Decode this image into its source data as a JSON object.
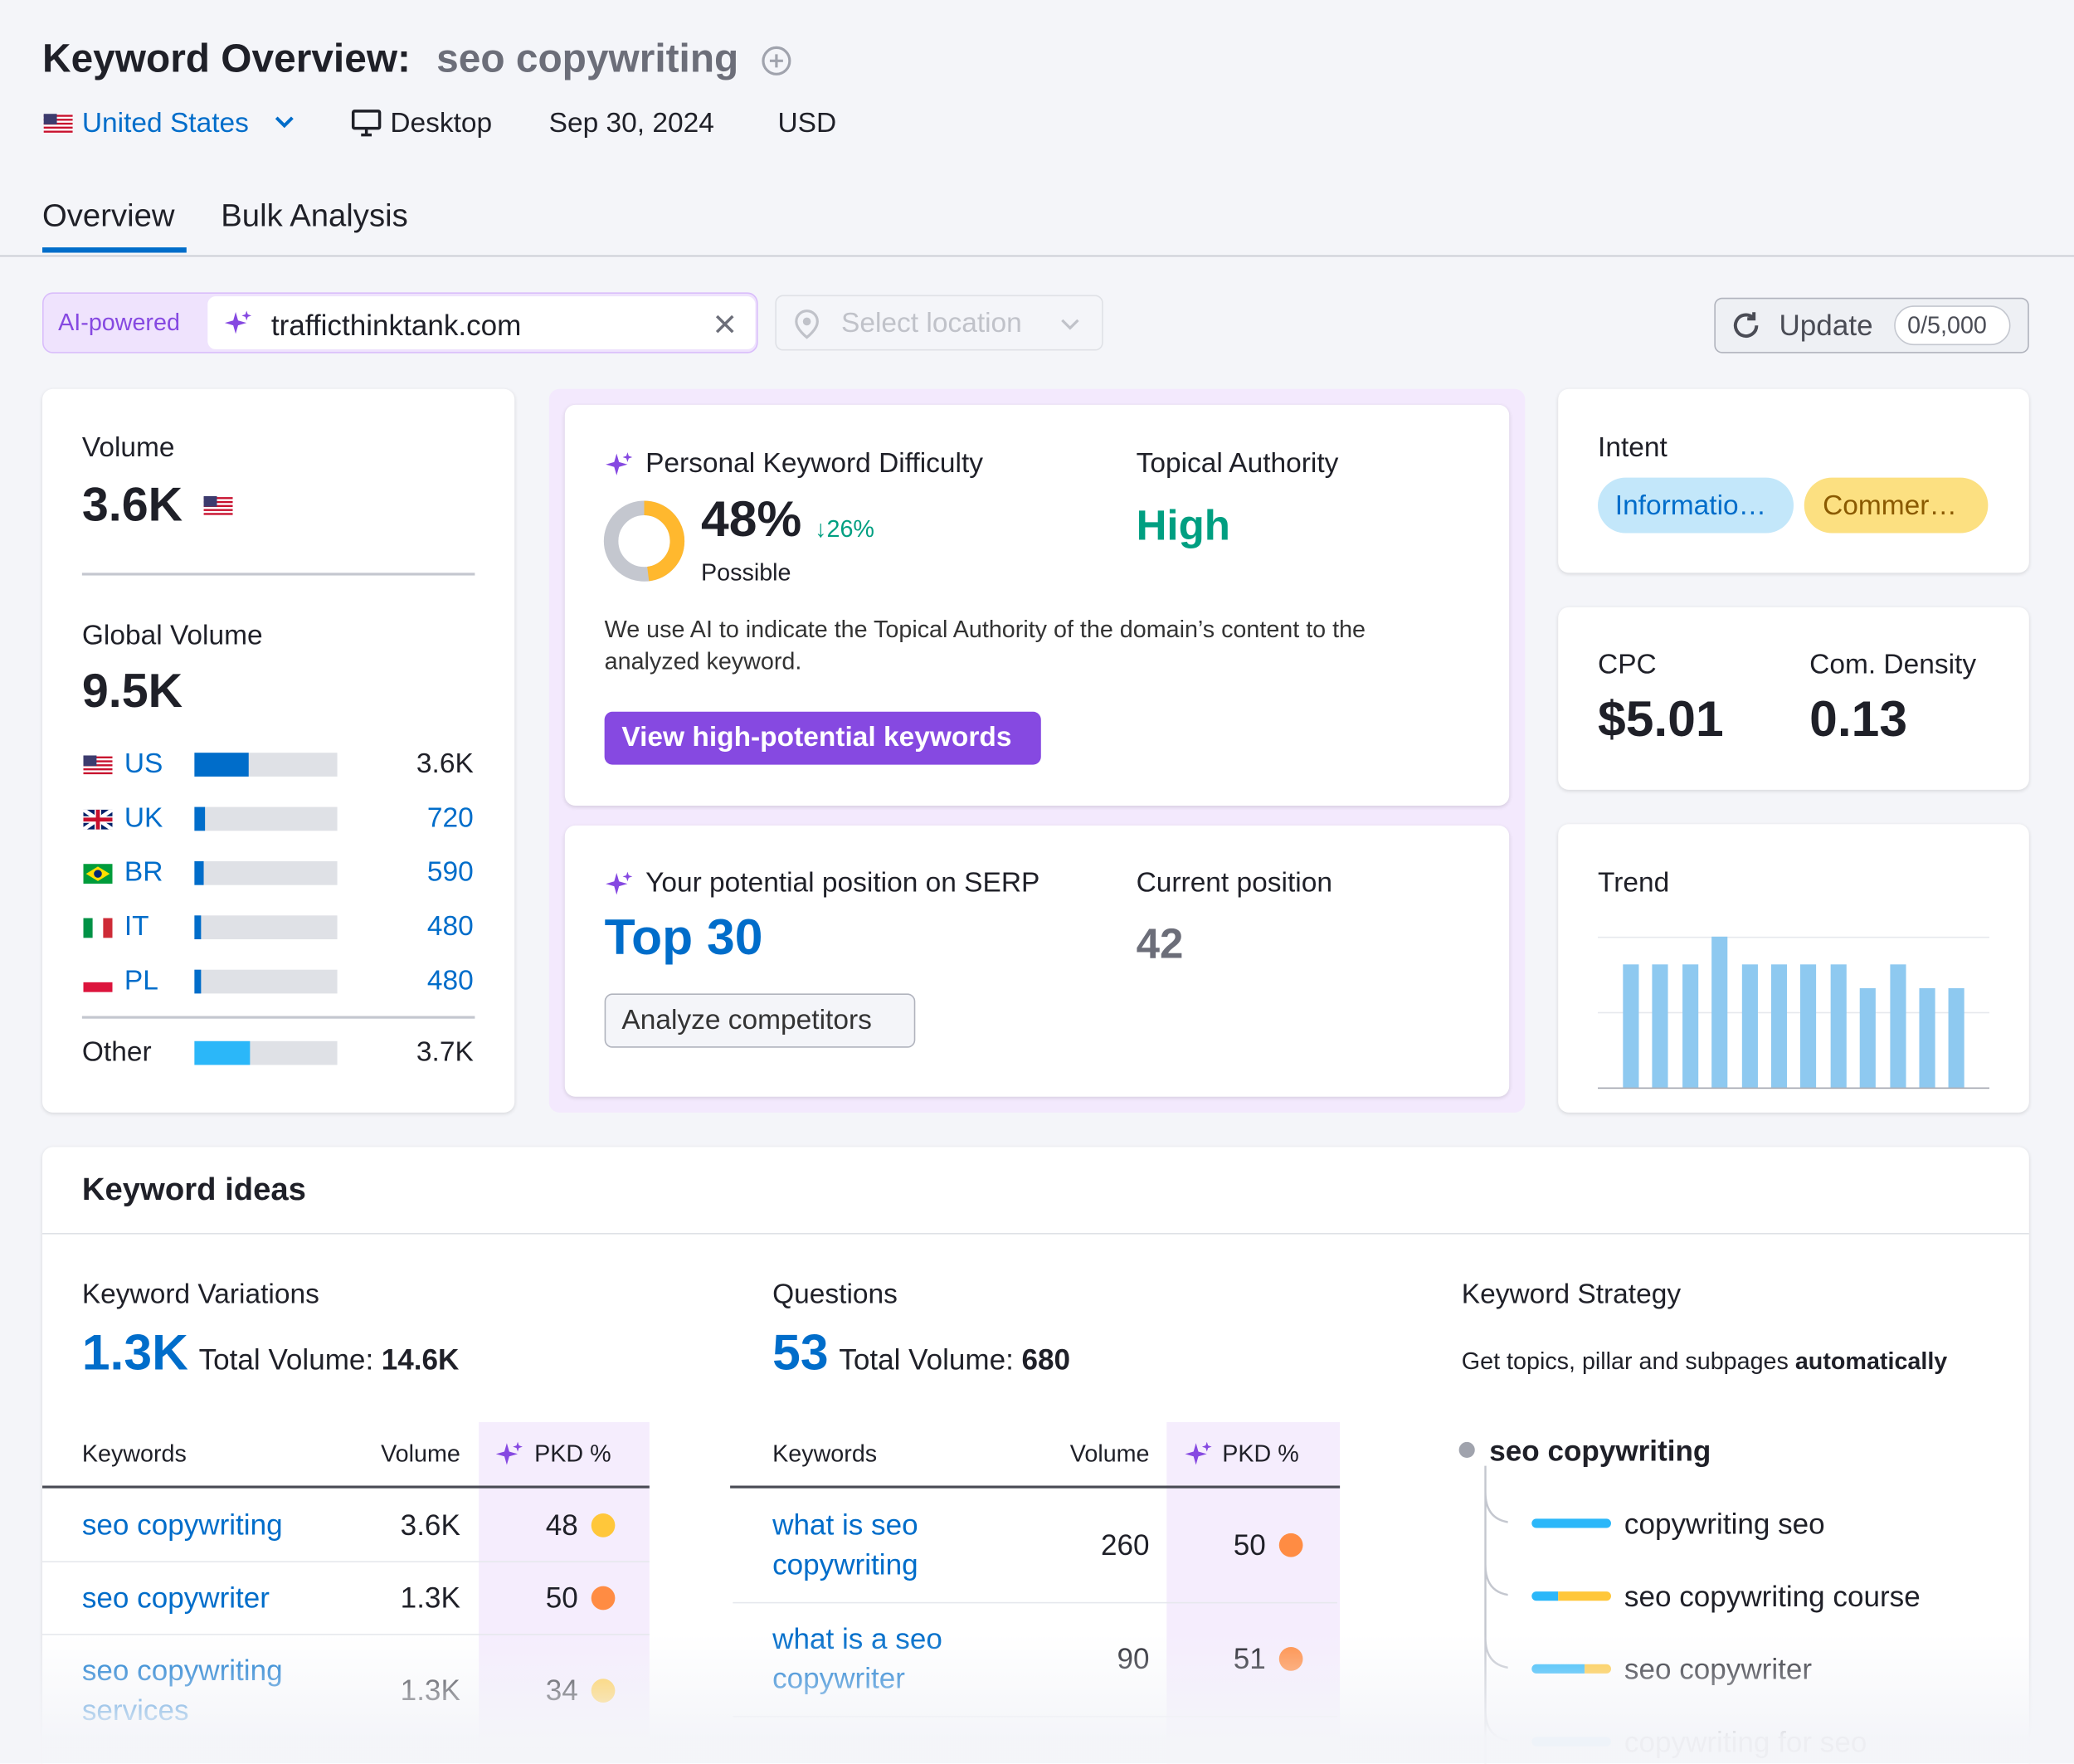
{
  "header": {
    "title": "Keyword Overview:",
    "keyword": "seo copywriting",
    "country": "United States",
    "device": "Desktop",
    "date": "Sep 30, 2024",
    "currency": "USD"
  },
  "tabs": [
    "Overview",
    "Bulk Analysis"
  ],
  "search": {
    "badge": "AI-powered",
    "domain": "trafficthinktank.com",
    "location_placeholder": "Select location",
    "update": "Update",
    "limit": "0/5,000"
  },
  "volume": {
    "label": "Volume",
    "value": "3.6K"
  },
  "global_volume": {
    "label": "Global Volume",
    "total": {
      "value": 9500,
      "label": "9.5K"
    },
    "countries": [
      {
        "code": "US",
        "value": 3600,
        "label": "3.6K"
      },
      {
        "code": "UK",
        "value": 720,
        "label": "720"
      },
      {
        "code": "BR",
        "value": 590,
        "label": "590"
      },
      {
        "code": "IT",
        "value": 480,
        "label": "480"
      },
      {
        "code": "PL",
        "value": 480,
        "label": "480"
      }
    ],
    "other": {
      "name": "Other",
      "value": 3700,
      "label": "3.7K"
    }
  },
  "pkd": {
    "title": "Personal Keyword Difficulty",
    "value": 48,
    "value_label": "48%",
    "change": "↓26%",
    "level": "Possible",
    "ta_title": "Topical Authority",
    "ta_value": "High",
    "note": "We use AI to indicate the Topical Authority of the domain’s content to the analyzed keyword.",
    "button": "View high-potential keywords"
  },
  "serp": {
    "title": "Your potential position on SERP",
    "value": "Top 30",
    "current_title": "Current position",
    "current": "42",
    "button": "Analyze competitors"
  },
  "intent": {
    "label": "Intent",
    "tags": [
      "Informatio…",
      "Commer…"
    ]
  },
  "cpc": {
    "label": "CPC",
    "value": "$5.01"
  },
  "density": {
    "label": "Com. Density",
    "value": "0.13"
  },
  "trend": {
    "label": "Trend",
    "values": [
      0.82,
      0.82,
      0.82,
      1,
      0.82,
      0.82,
      0.82,
      0.82,
      0.66,
      0.82,
      0.66,
      0.66
    ],
    "ylim": [
      0,
      1
    ],
    "yticks": [
      0,
      0.5,
      1
    ]
  },
  "ideas": {
    "title": "Keyword ideas",
    "variations": {
      "title": "Keyword Variations",
      "count": "1.3K",
      "total_label": "Total Volume:",
      "total": "14.6K",
      "columns": [
        "Keywords",
        "Volume",
        "PKD %"
      ],
      "rows": [
        {
          "keyword": "seo copywriting",
          "volume": "3.6K",
          "pkd": "48",
          "pkd_color": "#ffc73a"
        },
        {
          "keyword": "seo copywriter",
          "volume": "1.3K",
          "pkd": "50",
          "pkd_color": "#ff8c43"
        },
        {
          "keyword": "seo copywriting services",
          "volume": "1.3K",
          "pkd": "34",
          "pkd_color": "#ffc73a"
        }
      ]
    },
    "questions": {
      "title": "Questions",
      "count": "53",
      "total_label": "Total Volume:",
      "total": "680",
      "columns": [
        "Keywords",
        "Volume",
        "PKD %"
      ],
      "rows": [
        {
          "keyword": "what is seo copywriting",
          "volume": "260",
          "pkd": "50",
          "pkd_color": "#ff8c43"
        },
        {
          "keyword": "what is a seo copywriter",
          "volume": "90",
          "pkd": "51",
          "pkd_color": "#ff8c43"
        }
      ]
    },
    "strategy": {
      "title": "Keyword Strategy",
      "subtitle": "Get topics, pillar and subpages",
      "subtitle_bold": "automatically",
      "root": "seo copywriting",
      "children": [
        "copywriting seo",
        "seo copywriting course",
        "seo copywriter",
        "copywriting for seo"
      ]
    }
  }
}
